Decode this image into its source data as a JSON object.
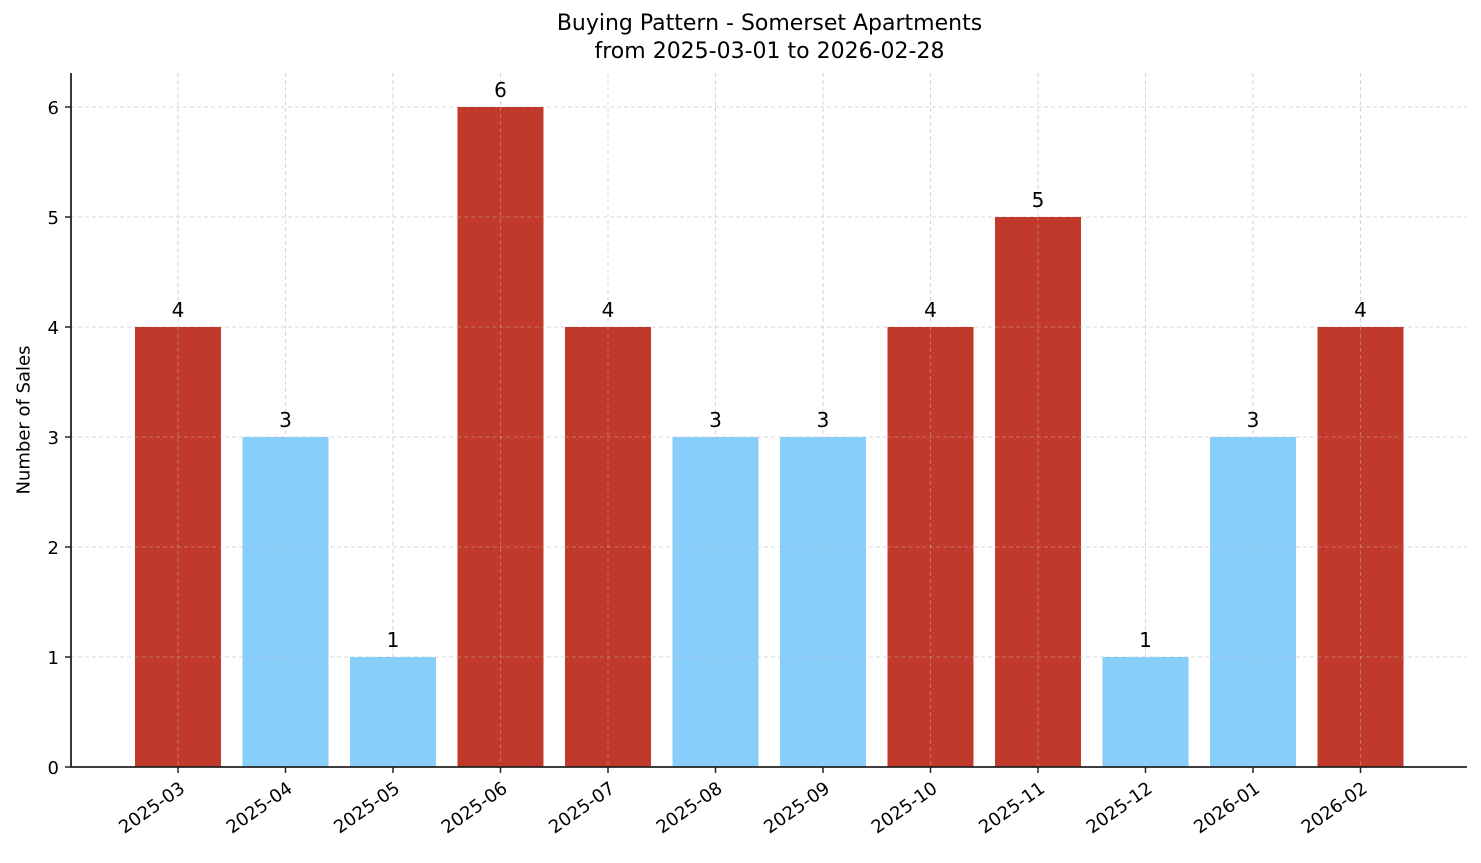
{
  "chart_data": {
    "type": "bar",
    "title": "Buying Pattern - Somerset Apartments",
    "subtitle": "from 2025-03-01 to 2026-02-28",
    "xlabel": "",
    "ylabel": "Number of Sales",
    "categories": [
      "2025-03",
      "2025-04",
      "2025-05",
      "2025-06",
      "2025-07",
      "2025-08",
      "2025-09",
      "2025-10",
      "2025-11",
      "2025-12",
      "2026-01",
      "2026-02"
    ],
    "values": [
      4,
      3,
      1,
      6,
      4,
      3,
      3,
      4,
      5,
      1,
      3,
      4
    ],
    "bar_colors": [
      "#c0392b",
      "#87cefa",
      "#87cefa",
      "#c0392b",
      "#c0392b",
      "#87cefa",
      "#87cefa",
      "#c0392b",
      "#c0392b",
      "#87cefa",
      "#87cefa",
      "#c0392b"
    ],
    "ylim": [
      0,
      6.3
    ],
    "yticks": [
      0,
      1,
      2,
      3,
      4,
      5,
      6
    ],
    "grid": true,
    "data_labels": true,
    "legend": null
  },
  "colors": {
    "high": "#c0392b",
    "low": "#87cefa",
    "grid": "#cccccc",
    "axis": "#222222"
  }
}
